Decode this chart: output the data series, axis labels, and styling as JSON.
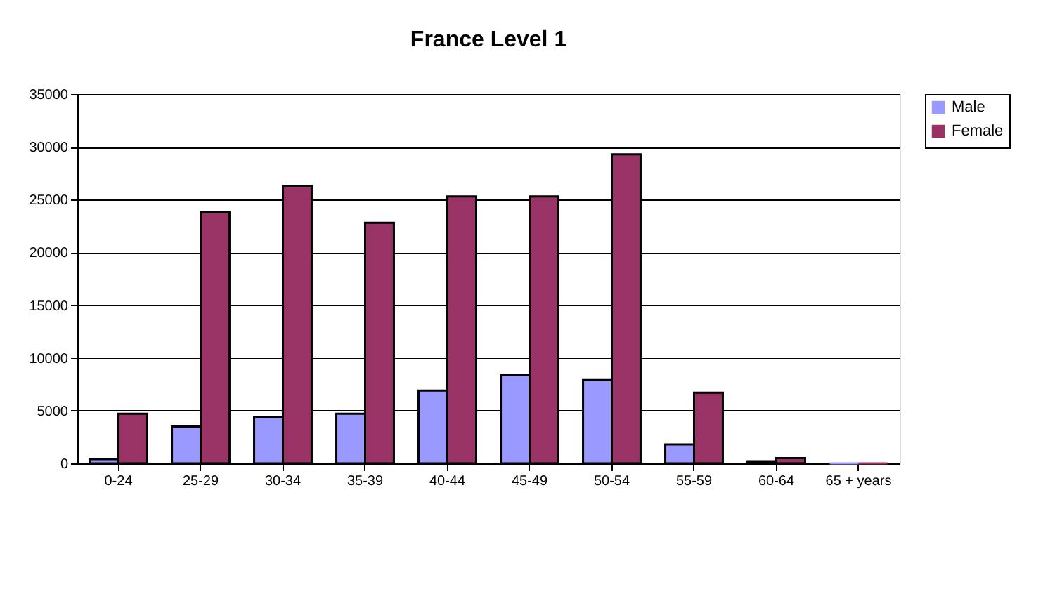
{
  "chart_data": {
    "type": "bar",
    "title": "France Level 1",
    "categories": [
      "0-24",
      "25-29",
      "30-34",
      "35-39",
      "40-44",
      "45-49",
      "50-54",
      "55-59",
      "60-64",
      "65 + years"
    ],
    "series": [
      {
        "name": "Male",
        "color": "#9999ff",
        "values": [
          400,
          3500,
          4400,
          4700,
          6900,
          8400,
          7900,
          1800,
          200,
          0
        ]
      },
      {
        "name": "Female",
        "color": "#993366",
        "values": [
          4700,
          23800,
          26300,
          22800,
          25300,
          25300,
          29300,
          6700,
          500,
          0
        ]
      }
    ],
    "ylim": [
      0,
      35000
    ],
    "yticks": [
      0,
      5000,
      10000,
      15000,
      20000,
      25000,
      30000,
      35000
    ],
    "grid": "y",
    "legend": "right"
  }
}
